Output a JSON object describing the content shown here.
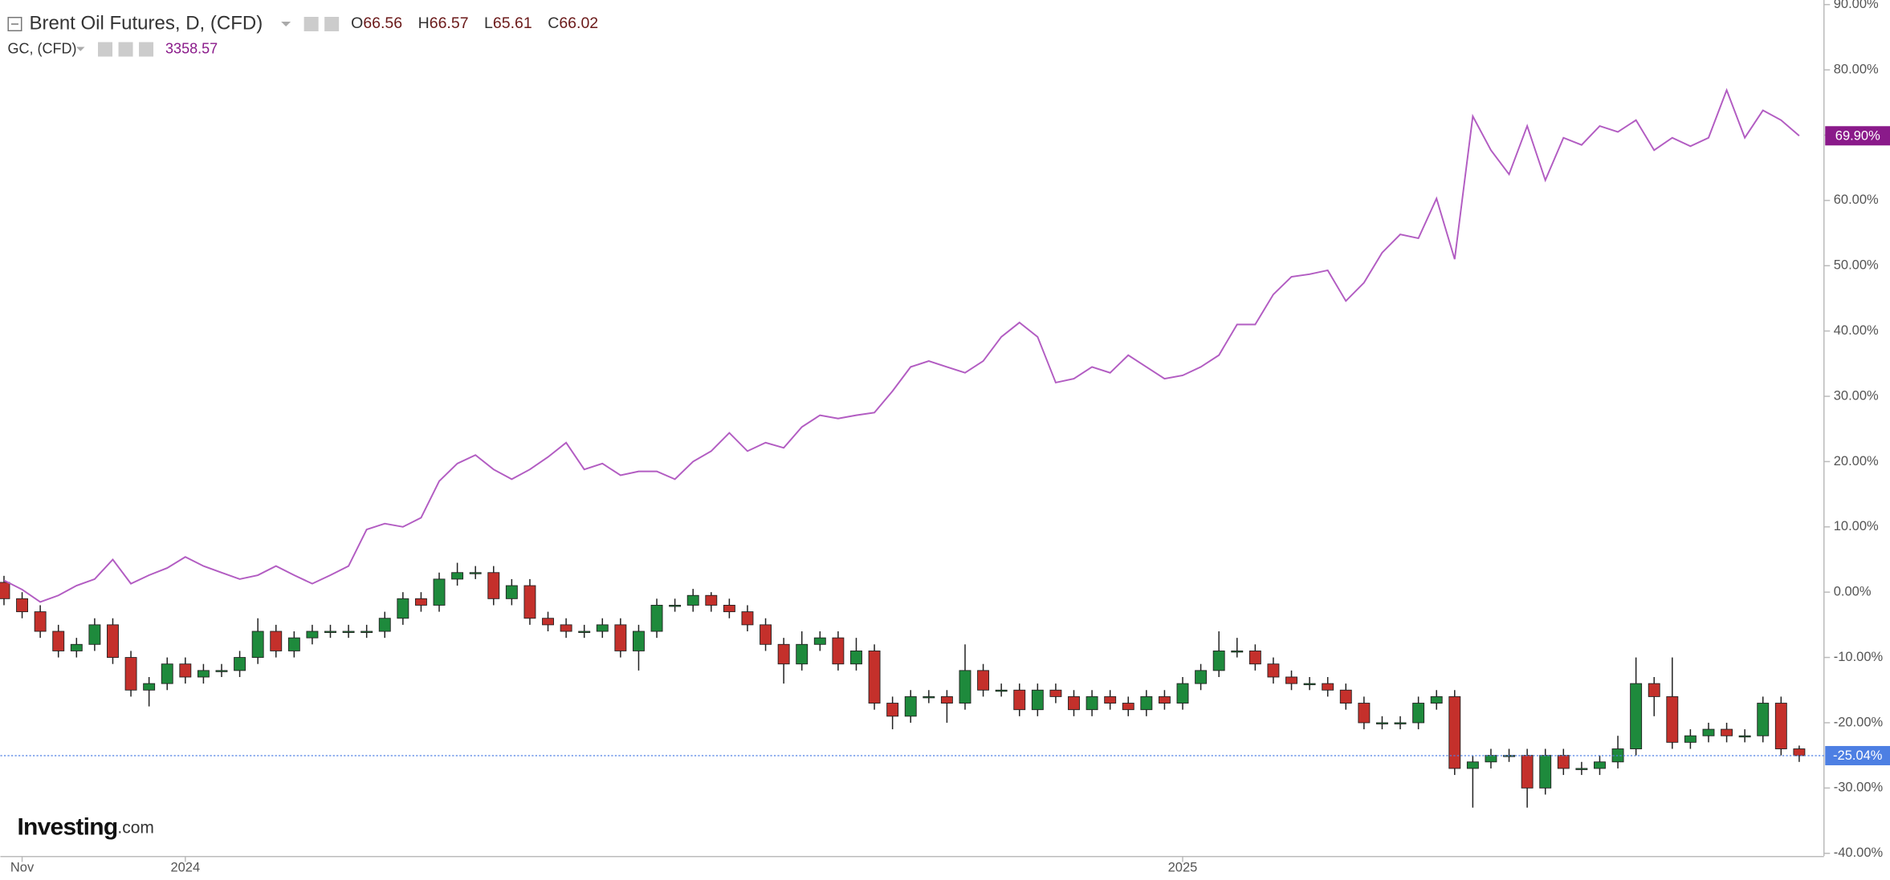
{
  "chart_data": {
    "type": "combo",
    "header": {
      "symbol": "Brent Oil Futures, D, (CFD)",
      "ohlc": [
        {
          "prefix": "O",
          "value": "66.56"
        },
        {
          "prefix": "H",
          "value": "66.57"
        },
        {
          "prefix": "L",
          "value": "65.61"
        },
        {
          "prefix": "C",
          "value": "66.02"
        }
      ],
      "compare_symbol": "GC, (CFD)",
      "compare_value": "3358.57"
    },
    "logo": {
      "name": "Investing",
      "suffix": ".com"
    },
    "categories": [
      null,
      "Nov",
      null,
      null,
      null,
      null,
      null,
      null,
      null,
      null,
      "2024",
      null,
      null,
      null,
      null,
      null,
      null,
      null,
      null,
      null,
      null,
      null,
      null,
      null,
      null,
      null,
      null,
      null,
      null,
      null,
      null,
      null,
      null,
      null,
      null,
      null,
      null,
      null,
      null,
      null,
      null,
      null,
      null,
      null,
      null,
      null,
      null,
      null,
      null,
      null,
      null,
      null,
      null,
      null,
      null,
      null,
      null,
      null,
      null,
      null,
      null,
      null,
      null,
      null,
      null,
      "2025",
      null,
      null,
      null,
      null,
      null,
      null,
      null,
      null,
      null,
      null,
      null,
      null,
      null,
      null,
      null,
      null,
      null,
      null,
      null,
      null,
      null,
      null,
      null,
      null,
      null,
      null,
      null,
      null,
      null,
      null,
      null,
      null,
      null,
      null
    ],
    "ylim": [
      -40.4,
      90.7
    ],
    "yticks": [
      {
        "value": 90,
        "label": "90.00%"
      },
      {
        "value": 80,
        "label": "80.00%"
      },
      {
        "value": 70,
        "label": "70.00%"
      },
      {
        "value": 60,
        "label": "60.00%"
      },
      {
        "value": 50,
        "label": "50.00%"
      },
      {
        "value": 40,
        "label": "40.00%"
      },
      {
        "value": 30,
        "label": "30.00%"
      },
      {
        "value": 20,
        "label": "20.00%"
      },
      {
        "value": 10,
        "label": "10.00%"
      },
      {
        "value": 0,
        "label": "0.00%"
      },
      {
        "value": -10,
        "label": "-10.00%"
      },
      {
        "value": -20,
        "label": "-20.00%"
      },
      {
        "value": -30,
        "label": "-30.00%"
      },
      {
        "value": -40,
        "label": "-40.00%"
      }
    ],
    "series": [
      {
        "name": "GC, (CFD)",
        "type": "line",
        "color": "#b25cc2",
        "label_color": "#8a1a8a",
        "last_label": "69.90%",
        "values": [
          1.8,
          0.4,
          -1.5,
          -0.5,
          1,
          2,
          5,
          1.3,
          2.6,
          3.7,
          5.4,
          4,
          3,
          2,
          2.6,
          4,
          2.6,
          1.3,
          2.6,
          4,
          9.6,
          10.5,
          10,
          11.4,
          17,
          19.7,
          21,
          18.8,
          17.3,
          18.8,
          20.7,
          22.9,
          18.8,
          19.7,
          17.9,
          18.5,
          18.5,
          17.3,
          20,
          21.6,
          24.4,
          21.6,
          22.9,
          22.1,
          25.3,
          27.1,
          26.6,
          27.1,
          27.5,
          30.8,
          34.5,
          35.4,
          34.5,
          33.6,
          35.4,
          39.1,
          41.3,
          39.1,
          32.1,
          32.7,
          34.5,
          33.6,
          36.3,
          34.5,
          32.7,
          33.2,
          34.5,
          36.3,
          41,
          41,
          45.6,
          48.3,
          48.7,
          49.3,
          44.6,
          47.4,
          52,
          54.8,
          54.2,
          60.3,
          51,
          72.9,
          67.7,
          64,
          71.4,
          63.1,
          69.6,
          68.5,
          71.4,
          70.5,
          72.3,
          67.7,
          69.6,
          68.3,
          69.6,
          76.9,
          69.6,
          73.8,
          72.3,
          69.9
        ]
      },
      {
        "name": "Brent Oil Futures, D, (CFD)",
        "type": "candlestick",
        "up_color": "#1e8a3c",
        "down_color": "#c4302b",
        "label_color": "#4d7fe3",
        "last_label": "-25.04%",
        "open": [
          1.5,
          -1,
          -3,
          -6,
          -9,
          -8,
          -5,
          -10,
          -15,
          -14,
          -11,
          -13,
          -12,
          -12,
          -10,
          -6,
          -9,
          -7,
          -6,
          -6,
          -6,
          -6,
          -4,
          -1,
          -2,
          2,
          3,
          3,
          -1,
          1,
          -4,
          -5,
          -6,
          -6,
          -5,
          -9,
          -6,
          -2,
          -2,
          -0.5,
          -2,
          -3,
          -5,
          -8,
          -11,
          -8,
          -7,
          -11,
          -9,
          -17,
          -19,
          -16,
          -16,
          -17,
          -12,
          -15,
          -15,
          -18,
          -15,
          -16,
          -18,
          -16,
          -17,
          -18,
          -16,
          -17,
          -14,
          -12,
          -9,
          -9,
          -11,
          -13,
          -14,
          -14,
          -15,
          -17,
          -20,
          -20,
          -20,
          -17,
          -16,
          -27,
          -26,
          -25,
          -25,
          -30,
          -25,
          -27,
          -27,
          -26,
          -24,
          -14,
          -16,
          -23,
          -22,
          -21,
          -22,
          -22,
          -17,
          -24
        ],
        "high": [
          2.5,
          0,
          -2,
          -5,
          -7,
          -4,
          -4,
          -9,
          -13,
          -10,
          -10,
          -11,
          -11,
          -9,
          -4,
          -5,
          -6,
          -5,
          -5,
          -5,
          -5,
          -3,
          0,
          0,
          3,
          4.5,
          4,
          4,
          2,
          2,
          -3,
          -4,
          -5,
          -4,
          -4,
          -5,
          -1,
          -1,
          0.5,
          0,
          -1,
          -2,
          -4,
          -7,
          -6,
          -6,
          -6,
          -7,
          -8,
          -16,
          -15,
          -15,
          -15,
          -8,
          -11,
          -14,
          -14,
          -14,
          -14,
          -15,
          -15,
          -15,
          -16,
          -15,
          -15,
          -13,
          -11,
          -6,
          -7,
          -8,
          -10,
          -12,
          -13,
          -13,
          -14,
          -16,
          -19,
          -19,
          -16,
          -15,
          -15,
          -25,
          -24,
          -24,
          -24,
          -24,
          -24,
          -26,
          -25,
          -22,
          -10,
          -13,
          -10,
          -21,
          -20,
          -20,
          -21,
          -16,
          -16,
          -23.5
        ],
        "low": [
          -2,
          -4,
          -7,
          -10,
          -10,
          -9,
          -11,
          -16,
          -17.5,
          -15,
          -14,
          -14,
          -13,
          -13,
          -11,
          -10,
          -10,
          -8,
          -7,
          -7,
          -7,
          -7,
          -5,
          -3,
          -3,
          1,
          2,
          -2,
          -2,
          -5,
          -6,
          -7,
          -7,
          -7,
          -10,
          -12,
          -7,
          -3,
          -3,
          -3,
          -4,
          -6,
          -9,
          -14,
          -12,
          -9,
          -12,
          -12,
          -18,
          -21,
          -20,
          -17,
          -20,
          -18,
          -16,
          -16,
          -19,
          -19,
          -17,
          -19,
          -19,
          -18,
          -19,
          -19,
          -18,
          -18,
          -15,
          -13,
          -10,
          -12,
          -14,
          -15,
          -15,
          -16,
          -18,
          -21,
          -21,
          -21,
          -21,
          -18,
          -28,
          -33,
          -27,
          -26,
          -33,
          -31,
          -28,
          -28,
          -28,
          -27,
          -25,
          -19,
          -24,
          -24,
          -23,
          -23,
          -23,
          -23,
          -25,
          -26
        ],
        "close": [
          -1,
          -3,
          -6,
          -9,
          -8,
          -5,
          -10,
          -15,
          -14,
          -11,
          -13,
          -12,
          -12,
          -10,
          -6,
          -9,
          -7,
          -6,
          -6,
          -6,
          -6,
          -4,
          -1,
          -2,
          2,
          3,
          3,
          -1,
          1,
          -4,
          -5,
          -6,
          -6,
          -5,
          -9,
          -6,
          -2,
          -2,
          -0.5,
          -2,
          -3,
          -5,
          -8,
          -11,
          -8,
          -7,
          -11,
          -9,
          -17,
          -19,
          -16,
          -16,
          -17,
          -12,
          -15,
          -15,
          -18,
          -15,
          -16,
          -18,
          -16,
          -17,
          -18,
          -16,
          -17,
          -14,
          -12,
          -9,
          -9,
          -11,
          -13,
          -14,
          -14,
          -15,
          -17,
          -20,
          -20,
          -20,
          -17,
          -16,
          -27,
          -26,
          -25,
          -25,
          -30,
          -25,
          -27,
          -27,
          -26,
          -24,
          -14,
          -16,
          -23,
          -22,
          -21,
          -22,
          -22,
          -17,
          -24,
          -25.04
        ]
      }
    ]
  }
}
